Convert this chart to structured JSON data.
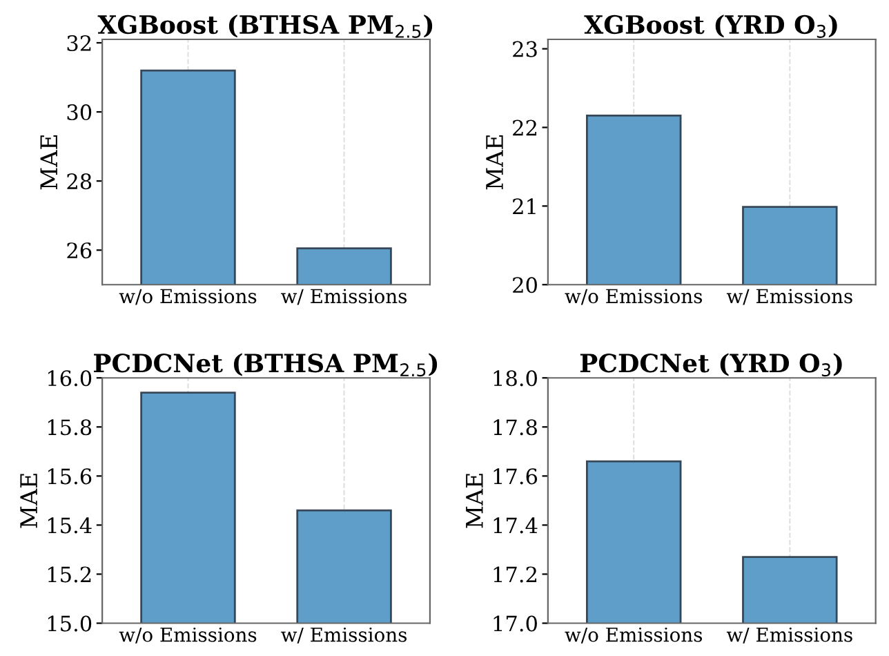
{
  "chart_data": [
    {
      "type": "bar",
      "title": "XGBoost (BTHSA PM$_{2.5}$)",
      "ylabel": "MAE",
      "categories": [
        "w/o Emissions",
        "w/ Emissions"
      ],
      "values": [
        31.2,
        26.05
      ],
      "color": "#5799c7",
      "ylim": [
        25,
        32.1
      ],
      "yticks": [
        26,
        28,
        30,
        32
      ],
      "grid": "x"
    },
    {
      "type": "bar",
      "title": "XGBoost (YRD O$_{3}$)",
      "ylabel": "MAE",
      "categories": [
        "w/o Emissions",
        "w/ Emissions"
      ],
      "values": [
        22.15,
        20.99
      ],
      "color": "#5799c7",
      "ylim": [
        20,
        23.12
      ],
      "yticks": [
        20,
        21,
        22,
        23
      ],
      "grid": "x"
    },
    {
      "type": "bar",
      "title": "PCDCNet (BTHSA PM$_{2.5}$)",
      "ylabel": "MAE",
      "categories": [
        "w/o Emissions",
        "w/ Emissions"
      ],
      "values": [
        15.94,
        15.46
      ],
      "color": "#5799c7",
      "ylim": [
        15.0,
        16.0
      ],
      "yticks": [
        {
          "value": 15.0,
          "label": "15.0"
        },
        {
          "value": 15.2,
          "label": "15.2"
        },
        {
          "value": 15.4,
          "label": "15.4"
        },
        {
          "value": 15.6,
          "label": "15.6"
        },
        {
          "value": 15.8,
          "label": "15.8"
        },
        {
          "value": 16.0,
          "label": "16.0"
        }
      ],
      "grid": "x"
    },
    {
      "type": "bar",
      "title": "PCDCNet (YRD O$_{3}$)",
      "ylabel": "MAE",
      "categories": [
        "w/o Emissions",
        "w/ Emissions"
      ],
      "values": [
        17.66,
        17.27
      ],
      "color": "#5799c7",
      "ylim": [
        17.0,
        18.0
      ],
      "yticks": [
        {
          "value": 17.0,
          "label": "17.0"
        },
        {
          "value": 17.2,
          "label": "17.2"
        },
        {
          "value": 17.4,
          "label": "17.4"
        },
        {
          "value": 17.6,
          "label": "17.6"
        },
        {
          "value": 17.8,
          "label": "17.8"
        },
        {
          "value": 18.0,
          "label": "18.0"
        }
      ],
      "grid": "x"
    }
  ]
}
